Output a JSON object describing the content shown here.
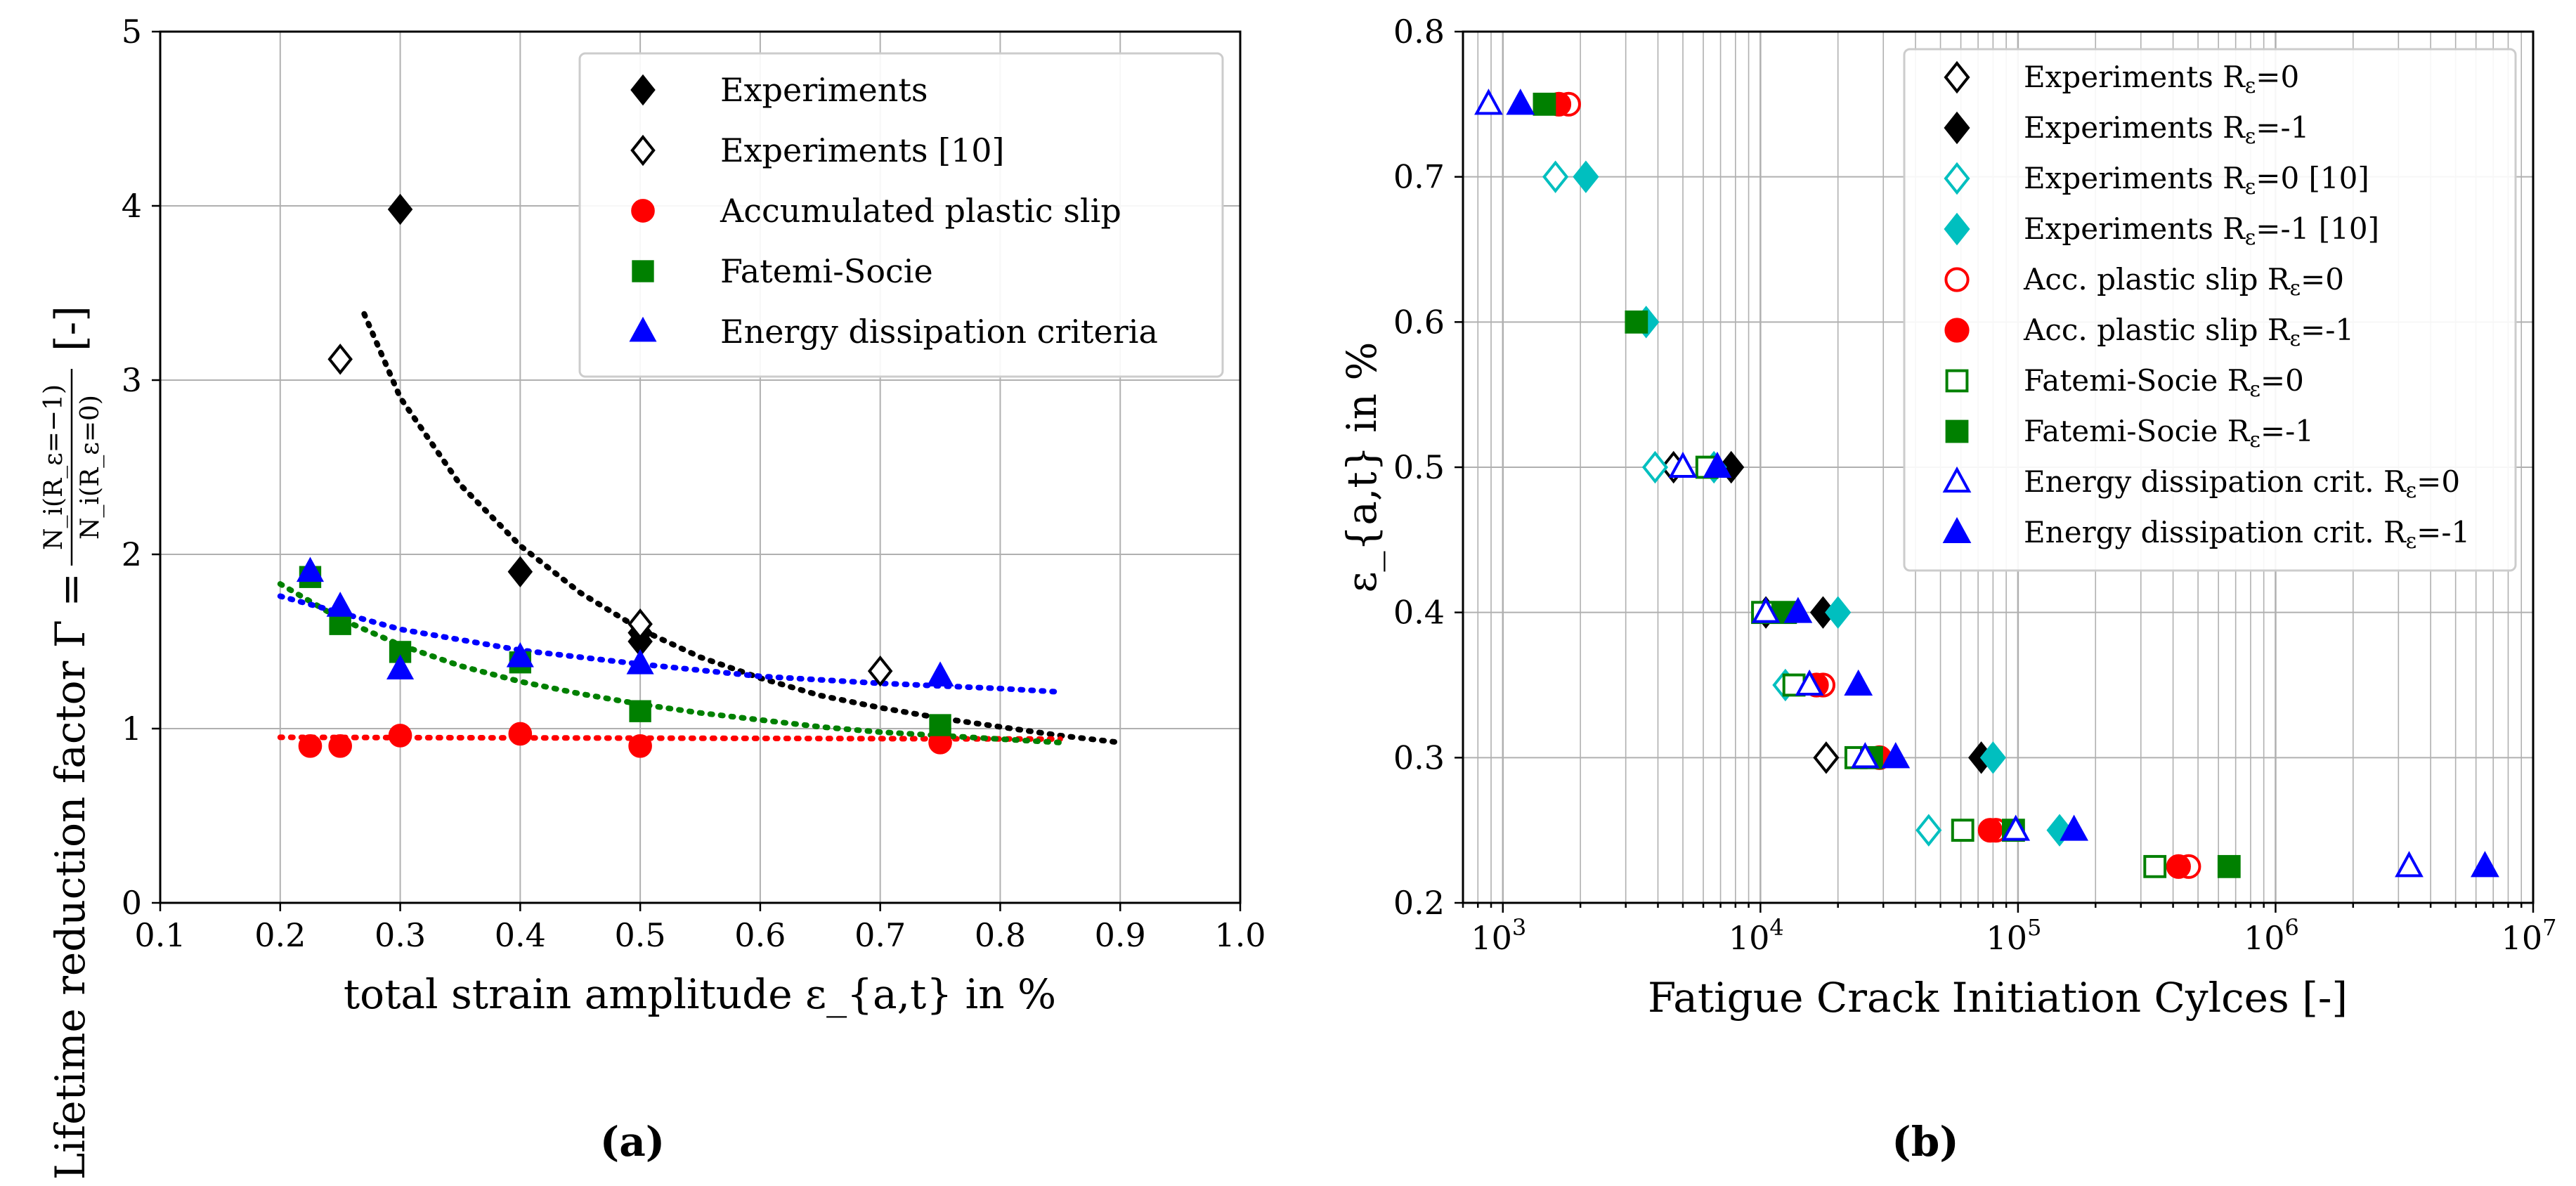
{
  "chart_data": [
    {
      "id": "a",
      "type": "scatter",
      "panel_label": "(a)",
      "xlabel": "total strain amplitude ε_{a,t} in %",
      "ylabel": "Lifetime reduction factor Γ = N_i(R_ε=−1) / N_i(R_ε=0) [-]",
      "ylabel_prefix": "Lifetime reduction factor Γ =",
      "ylabel_num": "N_i(R_ε=−1)",
      "ylabel_den": "N_i(R_ε=0)",
      "ylabel_suffix": "[-]",
      "xlim": [
        0.1,
        1.0
      ],
      "ylim": [
        0,
        5
      ],
      "xticks": [
        "0.1",
        "0.2",
        "0.3",
        "0.4",
        "0.5",
        "0.6",
        "0.7",
        "0.8",
        "0.9",
        "1.0"
      ],
      "yticks": [
        "0",
        "1",
        "2",
        "3",
        "4",
        "5"
      ],
      "grid": true,
      "legend_position": "top-right",
      "series": [
        {
          "name": "Experiments",
          "marker": "diamond",
          "filled": true,
          "color": "#000000",
          "x": [
            0.3,
            0.4,
            0.5,
            0.5
          ],
          "y": [
            3.98,
            1.9,
            1.5,
            1.55
          ]
        },
        {
          "name": "Experiments [10]",
          "marker": "diamond",
          "filled": false,
          "color": "#000000",
          "x": [
            0.25,
            0.5,
            0.7
          ],
          "y": [
            3.12,
            1.6,
            1.33
          ]
        },
        {
          "name": "Accumulated plastic slip",
          "marker": "circle",
          "filled": true,
          "color": "#ff0000",
          "x": [
            0.225,
            0.25,
            0.3,
            0.4,
            0.5,
            0.75
          ],
          "y": [
            0.9,
            0.9,
            0.96,
            0.97,
            0.9,
            0.92
          ]
        },
        {
          "name": "Fatemi-Socie",
          "marker": "square",
          "filled": true,
          "color": "#008000",
          "x": [
            0.225,
            0.25,
            0.3,
            0.4,
            0.5,
            0.75
          ],
          "y": [
            1.87,
            1.6,
            1.44,
            1.38,
            1.1,
            1.02
          ]
        },
        {
          "name": "Energy dissipation criteria",
          "marker": "triangle",
          "filled": true,
          "color": "#0000ff",
          "x": [
            0.225,
            0.25,
            0.3,
            0.4,
            0.5,
            0.75
          ],
          "y": [
            1.9,
            1.7,
            1.34,
            1.41,
            1.37,
            1.3
          ]
        }
      ],
      "fits": [
        {
          "color": "#000000",
          "x": [
            0.27,
            0.3,
            0.35,
            0.4,
            0.45,
            0.5,
            0.55,
            0.6,
            0.65,
            0.7,
            0.75,
            0.8,
            0.85,
            0.9
          ],
          "y": [
            3.38,
            2.9,
            2.4,
            2.05,
            1.78,
            1.57,
            1.41,
            1.29,
            1.19,
            1.12,
            1.06,
            1.01,
            0.96,
            0.92
          ]
        },
        {
          "color": "#ff0000",
          "x": [
            0.2,
            0.85
          ],
          "y": [
            0.95,
            0.94
          ]
        },
        {
          "color": "#008000",
          "x": [
            0.2,
            0.25,
            0.3,
            0.35,
            0.4,
            0.45,
            0.5,
            0.55,
            0.6,
            0.65,
            0.7,
            0.75,
            0.8,
            0.85
          ],
          "y": [
            1.83,
            1.63,
            1.48,
            1.36,
            1.27,
            1.2,
            1.14,
            1.09,
            1.05,
            1.01,
            0.98,
            0.96,
            0.94,
            0.92
          ]
        },
        {
          "color": "#0000ff",
          "x": [
            0.2,
            0.3,
            0.4,
            0.5,
            0.6,
            0.7,
            0.8,
            0.85
          ],
          "y": [
            1.76,
            1.57,
            1.45,
            1.37,
            1.3,
            1.26,
            1.23,
            1.21
          ]
        }
      ]
    },
    {
      "id": "b",
      "type": "scatter",
      "panel_label": "(b)",
      "xlabel": "Fatigue Crack Initiation Cylces [-]",
      "ylabel": "ε_{a,t} in %",
      "xscale": "log",
      "xlim": [
        700,
        10000000
      ],
      "ylim": [
        0.2,
        0.8
      ],
      "xticks": [
        {
          "base": "10",
          "exp": "3"
        },
        {
          "base": "10",
          "exp": "4"
        },
        {
          "base": "10",
          "exp": "5"
        },
        {
          "base": "10",
          "exp": "6"
        },
        {
          "base": "10",
          "exp": "7"
        }
      ],
      "yticks": [
        "0.2",
        "0.3",
        "0.4",
        "0.5",
        "0.6",
        "0.7",
        "0.8"
      ],
      "grid": true,
      "legend_position": "top-right",
      "series": [
        {
          "name": "Experiments R",
          "suffix": "=0",
          "marker": "diamond",
          "filled": false,
          "color": "#000000",
          "x": [
            4600,
            10500,
            18000
          ],
          "y": [
            0.5,
            0.4,
            0.3
          ]
        },
        {
          "name": "Experiments R",
          "suffix": "=-1",
          "marker": "diamond",
          "filled": true,
          "color": "#000000",
          "x": [
            7700,
            17500,
            72000
          ],
          "y": [
            0.5,
            0.4,
            0.3
          ]
        },
        {
          "name": "Experiments R",
          "suffix": "=0 [10]",
          "marker": "diamond",
          "filled": false,
          "color": "#00bfbf",
          "x": [
            1600,
            3900,
            12500,
            45000
          ],
          "y": [
            0.7,
            0.5,
            0.35,
            0.25
          ]
        },
        {
          "name": "Experiments R",
          "suffix": "=-1 [10]",
          "marker": "diamond",
          "filled": true,
          "color": "#00bfbf",
          "x": [
            2100,
            3600,
            6600,
            20000,
            80000,
            145000
          ],
          "y": [
            0.7,
            0.6,
            0.5,
            0.4,
            0.3,
            0.25
          ]
        },
        {
          "name": "Acc. plastic slip R",
          "suffix": "=0",
          "marker": "circle",
          "filled": false,
          "color": "#ff0000",
          "x": [
            1800,
            17500,
            82000,
            460000
          ],
          "y": [
            0.75,
            0.35,
            0.25,
            0.225
          ]
        },
        {
          "name": "Acc. plastic slip R",
          "suffix": "=-1",
          "marker": "circle",
          "filled": true,
          "color": "#ff0000",
          "x": [
            1650,
            16500,
            29000,
            78000,
            420000
          ],
          "y": [
            0.75,
            0.35,
            0.3,
            0.25,
            0.225
          ]
        },
        {
          "name": "Fatemi-Socie R",
          "suffix": "=0",
          "marker": "square",
          "filled": false,
          "color": "#008000",
          "x": [
            6200,
            10200,
            13500,
            23500,
            61000,
            340000
          ],
          "y": [
            0.5,
            0.4,
            0.35,
            0.3,
            0.25,
            0.225
          ]
        },
        {
          "name": "Fatemi-Socie R",
          "suffix": "=-1",
          "marker": "square",
          "filled": true,
          "color": "#008000",
          "x": [
            1450,
            3300,
            12500,
            27000,
            96000,
            660000
          ],
          "y": [
            0.75,
            0.6,
            0.4,
            0.3,
            0.25,
            0.225
          ]
        },
        {
          "name": "Energy dissipation crit. R",
          "suffix": "=0",
          "marker": "triangle",
          "filled": false,
          "color": "#0000ff",
          "x": [
            880,
            5000,
            10500,
            15500,
            25500,
            98000,
            3300000
          ],
          "y": [
            0.75,
            0.5,
            0.4,
            0.35,
            0.3,
            0.25,
            0.225
          ]
        },
        {
          "name": "Energy dissipation crit. R",
          "suffix": "=-1",
          "marker": "triangle",
          "filled": true,
          "color": "#0000ff",
          "x": [
            1170,
            6800,
            14000,
            24000,
            33500,
            165000,
            6500000
          ],
          "y": [
            0.75,
            0.5,
            0.4,
            0.35,
            0.3,
            0.25,
            0.225
          ]
        }
      ]
    }
  ]
}
